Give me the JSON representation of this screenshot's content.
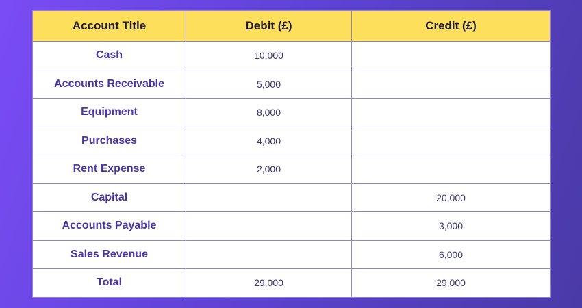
{
  "table": {
    "headers": [
      "Account Title",
      "Debit (£)",
      "Credit (£)"
    ],
    "rows": [
      {
        "title": "Cash",
        "debit": "10,000",
        "credit": ""
      },
      {
        "title": "Accounts Receivable",
        "debit": "5,000",
        "credit": ""
      },
      {
        "title": "Equipment",
        "debit": "8,000",
        "credit": ""
      },
      {
        "title": "Purchases",
        "debit": "4,000",
        "credit": ""
      },
      {
        "title": "Rent Expense",
        "debit": "2,000",
        "credit": ""
      },
      {
        "title": "Capital",
        "debit": "",
        "credit": "20,000"
      },
      {
        "title": "Accounts Payable",
        "debit": "",
        "credit": "3,000"
      },
      {
        "title": "Sales Revenue",
        "debit": "",
        "credit": "6,000"
      },
      {
        "title": "Total",
        "debit": "29,000",
        "credit": "29,000"
      }
    ]
  },
  "colors": {
    "header_bg": "#fddf5c",
    "header_text": "#1f1a3a",
    "title_text": "#4b35a6",
    "value_text": "#3b3470",
    "background_start": "#7a4cf5",
    "background_end": "#4a3aa6"
  }
}
